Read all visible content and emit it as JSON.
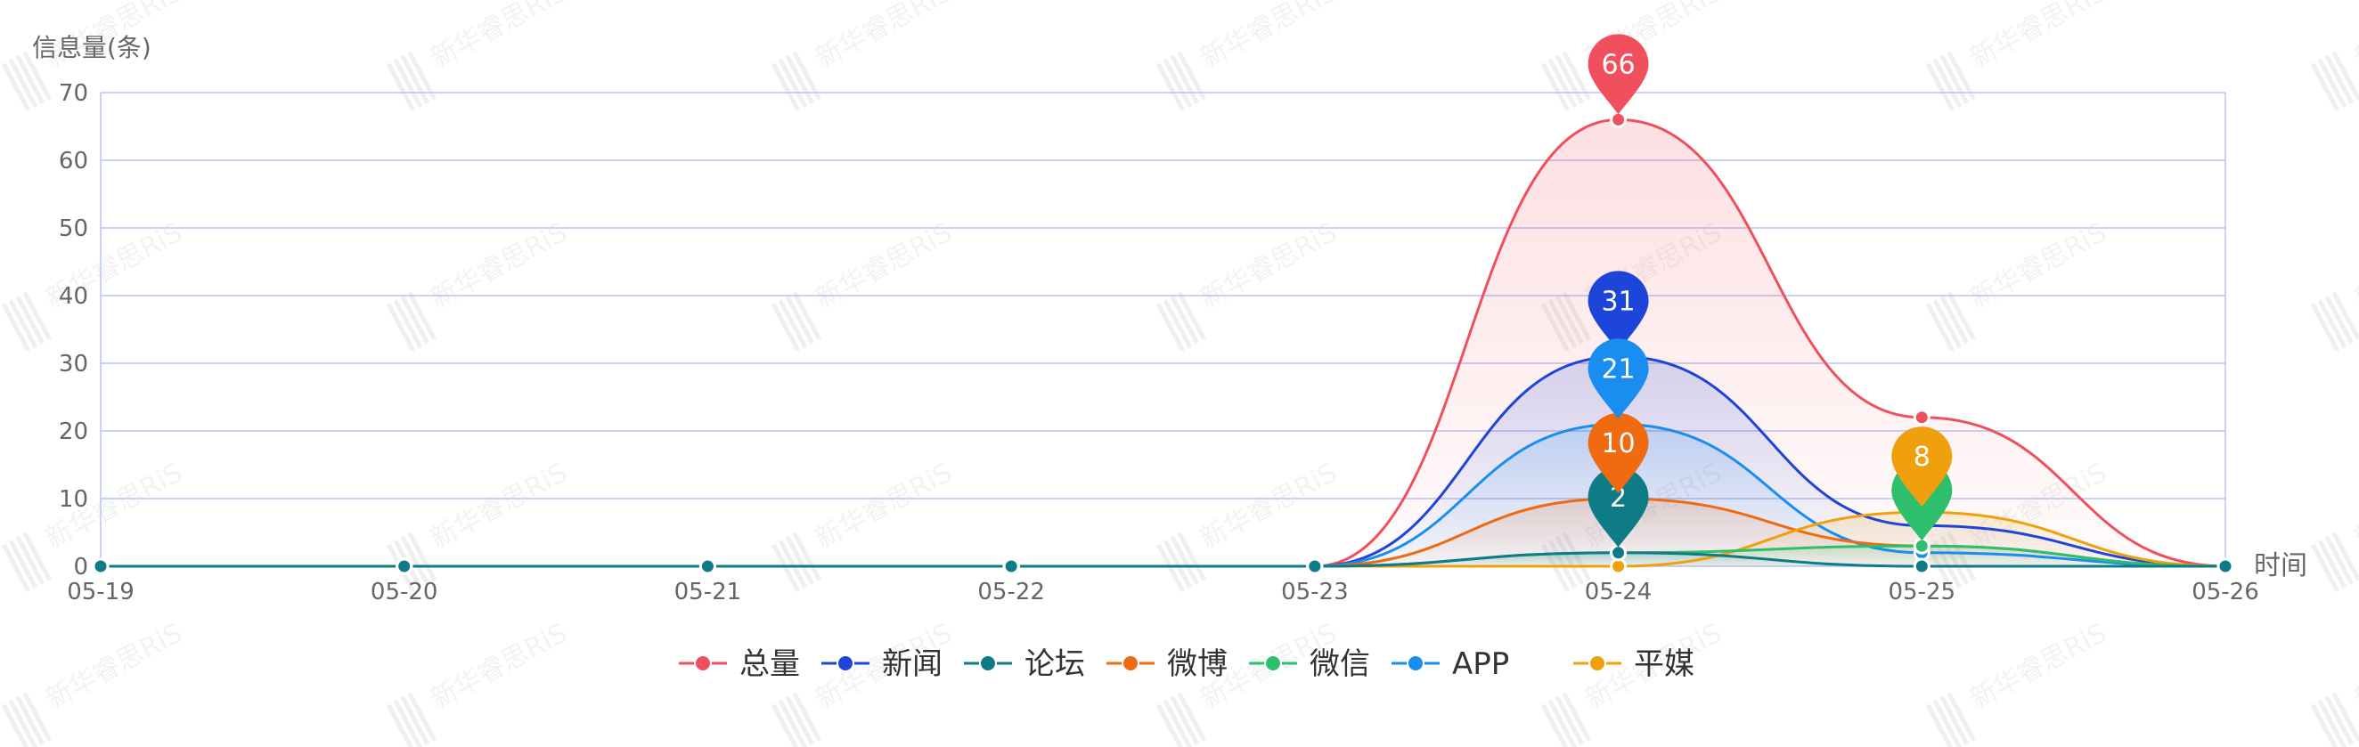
{
  "chart_data": {
    "type": "line",
    "smooth": true,
    "area": true,
    "title": "",
    "xlabel": "时间",
    "ylabel": "信息量(条)",
    "categories": [
      "05-19",
      "05-20",
      "05-21",
      "05-22",
      "05-23",
      "05-24",
      "05-25",
      "05-26"
    ],
    "y_ticks": [
      "0",
      "10",
      "20",
      "30",
      "40",
      "50",
      "60",
      "70"
    ],
    "ylim": [
      0,
      70
    ],
    "grid": true,
    "legend_position": "bottom-center",
    "series": [
      {
        "name": "总量",
        "color": "#f0505e",
        "values": [
          0,
          0,
          0,
          0,
          0,
          66,
          22,
          0
        ],
        "peak_label": "66"
      },
      {
        "name": "新闻",
        "color": "#1e45d9",
        "values": [
          0,
          0,
          0,
          0,
          0,
          31,
          6,
          0
        ],
        "peak_label": "31"
      },
      {
        "name": "论坛",
        "color": "#0e7c86",
        "values": [
          0,
          0,
          0,
          0,
          0,
          2,
          0,
          0
        ],
        "peak_label": "2"
      },
      {
        "name": "微博",
        "color": "#ef6a10",
        "values": [
          0,
          0,
          0,
          0,
          0,
          10,
          3,
          0
        ],
        "peak_label": "10"
      },
      {
        "name": "微信",
        "color": "#2dbf6b",
        "values": [
          0,
          0,
          0,
          0,
          0,
          2,
          3,
          0
        ],
        "peak_label": "3"
      },
      {
        "name": "APP",
        "color": "#198ef0",
        "values": [
          0,
          0,
          0,
          0,
          0,
          21,
          2,
          0
        ],
        "peak_label": "21"
      },
      {
        "name": "平媒",
        "color": "#f0a00c",
        "values": [
          0,
          0,
          0,
          0,
          0,
          0,
          8,
          0
        ],
        "peak_label": "8"
      }
    ]
  },
  "watermark": {
    "text": "新华睿思RiS"
  },
  "colors": {
    "grid": "#b8c4f5",
    "axis_text": "#666666",
    "background": "#ffffff"
  }
}
